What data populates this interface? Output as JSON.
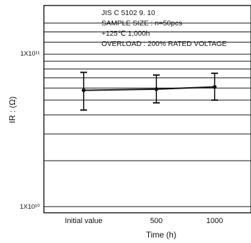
{
  "chart_data": {
    "type": "line",
    "title": "",
    "annotations": [
      "JIS C 5102 9. 10",
      "SAMPLE SIZE : n=50pcs",
      "+125℃ 1,000h",
      "OVERLOAD : 200% RATED VOLTAGE"
    ],
    "xlabel": "Time (h)",
    "ylabel": "IR : (Ω)",
    "y_scale": "log",
    "ylim": [
      10000000000.0,
      160000000000.0
    ],
    "y_tick_labels": [
      "1X10¹¹",
      "1X10¹⁰"
    ],
    "y_ticks": [
      100000000000.0,
      10000000000.0
    ],
    "x_tick_labels": [
      "Initial value",
      "500",
      "1000"
    ],
    "categories": [
      "Initial value",
      "500",
      "1000"
    ],
    "grid": true,
    "legend": "none",
    "series": [
      {
        "values": [
          58000000000.0,
          59000000000.0,
          61000000000.0
        ],
        "error_high": [
          76000000000.0,
          73000000000.0,
          75000000000.0
        ],
        "error_low": [
          43000000000.0,
          48000000000.0,
          50000000000.0
        ]
      }
    ],
    "line_color": "#111111"
  }
}
